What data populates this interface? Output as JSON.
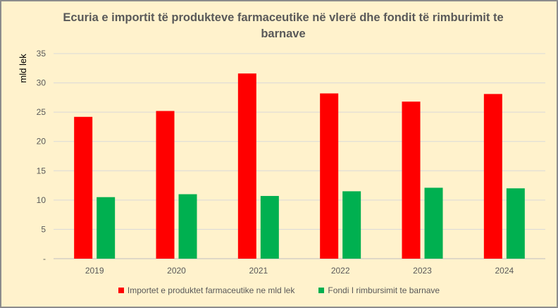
{
  "chart_data": {
    "type": "bar",
    "title": "Ecuria e importit të produkteve farmaceutike në vlerë dhe fondit të rimburimit te barnave",
    "xlabel": "",
    "ylabel": "mld lek",
    "ylim": [
      0,
      35
    ],
    "yticks": [
      0,
      5,
      10,
      15,
      20,
      25,
      30,
      35
    ],
    "ytick_labels": [
      "-",
      "5",
      "10",
      "15",
      "20",
      "25",
      "30",
      "35"
    ],
    "categories": [
      "2019",
      "2020",
      "2021",
      "2022",
      "2023",
      "2024"
    ],
    "grid": true,
    "legend_position": "bottom",
    "series": [
      {
        "name": "Importet e produktet farmaceutike ne mld lek",
        "color": "#ff0000",
        "values": [
          24.2,
          25.2,
          31.6,
          28.2,
          26.8,
          28.1
        ]
      },
      {
        "name": "Fondi I rimbursimit te barnave",
        "color": "#00b050",
        "values": [
          10.5,
          11.0,
          10.7,
          11.5,
          12.1,
          12.0
        ]
      }
    ]
  }
}
